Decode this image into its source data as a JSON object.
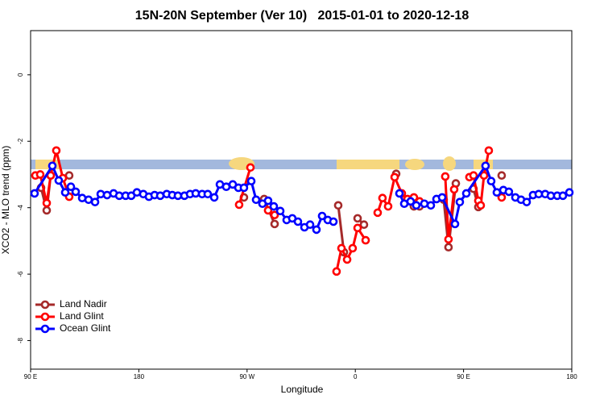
{
  "chart_data": {
    "type": "line",
    "title": "15N-20N September (Ver 10)   2015-01-01 to 2020-12-18",
    "x_label": "Longitude",
    "y_label": "XCO2 - MLO trend (ppm)",
    "xlim": [
      90,
      540
    ],
    "xticks": [
      {
        "value": 90,
        "label": "90 E"
      },
      180,
      {
        "value": 270,
        "label": "90 W"
      },
      {
        "value": 360,
        "label": "0"
      },
      {
        "value": 450,
        "label": "90 E"
      },
      {
        "value": 540,
        "label": "180"
      }
    ],
    "ylim": [
      -8.86,
      1.33
    ],
    "yticks": [
      0,
      -2,
      -4,
      -6,
      -8
    ],
    "legend": "bottom-left",
    "series": [
      {
        "name": "Land Nadir",
        "color": "#a52a2a",
        "x": [
          98.7,
          103.4,
          106.7,
          null,
          122.1,
          null,
          267.4,
          null,
          284.2,
          292.9,
          null,
          345.8,
          350.5,
          null,
          361.9,
          367.2,
          null,
          394.0,
          null,
          408.7,
          413.4,
          null,
          433.5,
          437.5,
          443.6,
          null,
          458.3,
          462.3,
          null,
          481.7
        ],
        "values": [
          -3.4,
          -4.08,
          -3.03,
          null,
          -3.03,
          null,
          -3.69,
          null,
          -3.74,
          -4.49,
          null,
          -3.93,
          -5.34,
          null,
          -4.32,
          -4.51,
          null,
          -2.98,
          null,
          -3.96,
          -3.96,
          null,
          -3.76,
          -5.19,
          -3.27,
          null,
          -3.43,
          -3.98,
          null,
          -3.03
        ]
      },
      {
        "name": "Land Glint",
        "color": "#ff0000",
        "x": [
          94.0,
          98.0,
          103.4,
          106.7,
          111.4,
          116.8,
          122.1,
          null,
          263.4,
          272.8,
          null,
          287.5,
          292.9,
          null,
          344.4,
          348.5,
          353.2,
          357.8,
          361.9,
          368.6,
          null,
          378.6,
          382.6,
          387.3,
          392.7,
          398.7,
          403.4,
          408.7,
          413.4,
          null,
          434.8,
          437.5,
          442.2,
          null,
          454.9,
          458.3,
          462.3,
          464.3,
          467.0,
          471.0,
          null,
          481.7
        ],
        "values": [
          -3.03,
          -3.0,
          -3.86,
          -3.03,
          -2.28,
          -3.11,
          -3.67,
          null,
          -3.91,
          -2.79,
          null,
          -4.08,
          -4.22,
          null,
          -5.92,
          -5.22,
          -5.56,
          -5.22,
          -4.61,
          -4.98,
          null,
          -4.15,
          -3.71,
          -3.96,
          -3.08,
          -3.57,
          -3.74,
          -3.69,
          -3.81,
          null,
          -3.06,
          -4.95,
          -3.45,
          null,
          -3.08,
          -3.03,
          -3.79,
          -3.93,
          -3.03,
          -2.28,
          null,
          -3.69
        ]
      },
      {
        "name": "Ocean Glint",
        "color": "#0000ff",
        "x": [
          93.3,
          108.1,
          113.4,
          118.8,
          123.5,
          127.5,
          132.9,
          138.2,
          143.6,
          148.3,
          153.6,
          159.0,
          163.7,
          169.0,
          173.7,
          178.4,
          183.7,
          188.4,
          193.1,
          197.8,
          203.2,
          207.8,
          212.5,
          217.9,
          222.6,
          227.3,
          232.6,
          237.3,
          242.7,
          247.4,
          252.7,
          258.1,
          262.8,
          267.4,
          273.5,
          277.5,
          282.8,
          287.5,
          292.2,
          297.6,
          302.9,
          307.6,
          312.3,
          317.7,
          322.4,
          327.7,
          332.4,
          337.1,
          341.8,
          null,
          396.7,
          400.7,
          406.0,
          410.7,
          417.4,
          422.8,
          427.5,
          432.2,
          442.9,
          446.9,
          452.3,
          468.3,
          473.0,
          477.7,
          483.1,
          487.7,
          493.1,
          497.8,
          502.5,
          507.8,
          512.5,
          517.9,
          522.6,
          527.9,
          532.6,
          538.0
        ],
        "values": [
          -3.57,
          -2.74,
          -3.18,
          -3.54,
          -3.37,
          -3.52,
          -3.71,
          -3.76,
          -3.83,
          -3.59,
          -3.62,
          -3.57,
          -3.64,
          -3.64,
          -3.64,
          -3.54,
          -3.59,
          -3.67,
          -3.62,
          -3.64,
          -3.59,
          -3.62,
          -3.64,
          -3.64,
          -3.59,
          -3.57,
          -3.59,
          -3.59,
          -3.69,
          -3.3,
          -3.37,
          -3.3,
          -3.4,
          -3.4,
          -3.2,
          -3.76,
          -3.88,
          -3.79,
          -3.96,
          -4.1,
          -4.37,
          -4.32,
          -4.42,
          -4.59,
          -4.51,
          -4.66,
          -4.25,
          -4.37,
          -4.42,
          null,
          -3.57,
          -3.88,
          -3.81,
          -3.93,
          -3.88,
          -3.93,
          -3.74,
          -3.69,
          -4.49,
          -3.83,
          -3.57,
          -2.74,
          -3.2,
          -3.54,
          -3.47,
          -3.52,
          -3.69,
          -3.76,
          -3.83,
          -3.62,
          -3.59,
          -3.59,
          -3.64,
          -3.64,
          -3.64,
          -3.54
        ]
      }
    ]
  }
}
